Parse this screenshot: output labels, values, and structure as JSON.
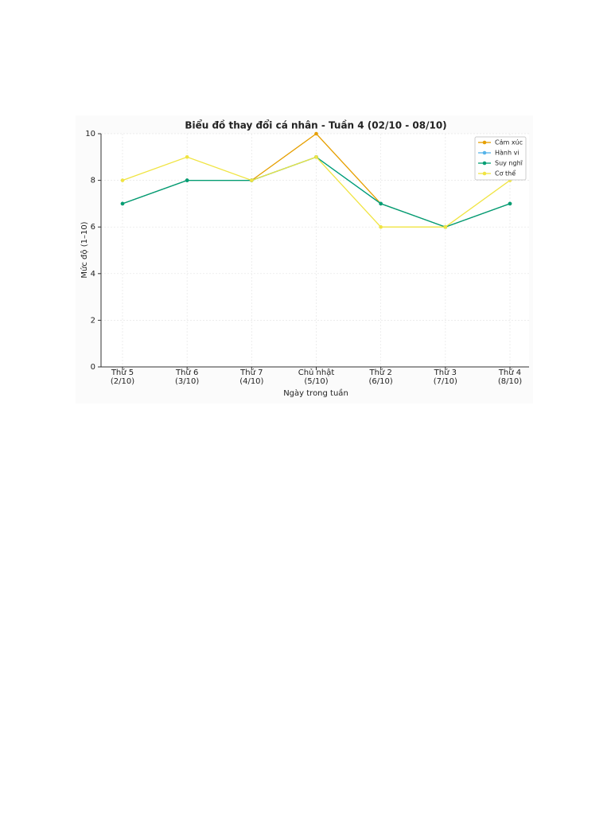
{
  "chart_data": {
    "type": "line",
    "title": "Biểu đồ thay đổi cá nhân - Tuần 4 (02/10 - 08/10)",
    "xlabel": "Ngày trong tuần",
    "ylabel": "Mức độ (1–10)",
    "categories": [
      "Thứ 5\n(2/10)",
      "Thứ 6\n(3/10)",
      "Thứ 7\n(4/10)",
      "Chủ nhật\n(5/10)",
      "Thứ 2\n(6/10)",
      "Thứ 3\n(7/10)",
      "Thứ 4\n(8/10)"
    ],
    "series": [
      {
        "name": "Cảm xúc",
        "color": "#e69f00",
        "values": [
          7,
          8,
          8,
          10,
          7,
          6,
          7
        ]
      },
      {
        "name": "Hành vi",
        "color": "#56b4e9",
        "values": [
          7,
          8,
          8,
          9,
          7,
          6,
          7
        ]
      },
      {
        "name": "Suy nghĩ",
        "color": "#009e73",
        "values": [
          7,
          8,
          8,
          9,
          7,
          6,
          7
        ]
      },
      {
        "name": "Cơ thể",
        "color": "#f0e442",
        "values": [
          8,
          9,
          8,
          9,
          6,
          6,
          8
        ]
      }
    ],
    "ylim": [
      0,
      10
    ],
    "yticks": [
      0,
      2,
      4,
      6,
      8,
      10
    ],
    "grid": true,
    "legend": "upper right"
  }
}
